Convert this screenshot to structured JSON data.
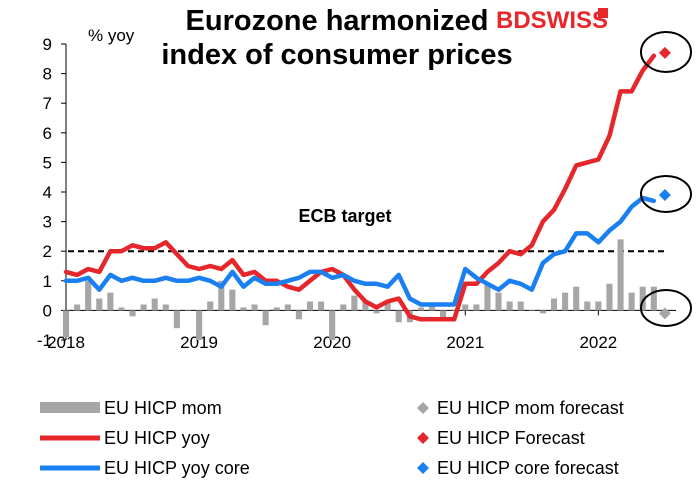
{
  "chart_data": {
    "type": "line",
    "title_lines": [
      "Eurozone harmonized",
      "index of consumer prices"
    ],
    "ylabel": "% yoy",
    "ylim": [
      -1,
      9
    ],
    "yticks": [
      -1,
      0,
      1,
      2,
      3,
      4,
      5,
      6,
      7,
      8,
      9
    ],
    "xlim": [
      "2018-01",
      "2022-08"
    ],
    "xticks": [
      {
        "label": "2018",
        "date": "2018-01"
      },
      {
        "label": "2019",
        "date": "2019-01"
      },
      {
        "label": "2020",
        "date": "2020-01"
      },
      {
        "label": "2021",
        "date": "2021-01"
      },
      {
        "label": "2022",
        "date": "2022-01"
      }
    ],
    "x": [
      "2018-01",
      "2018-02",
      "2018-03",
      "2018-04",
      "2018-05",
      "2018-06",
      "2018-07",
      "2018-08",
      "2018-09",
      "2018-10",
      "2018-11",
      "2018-12",
      "2019-01",
      "2019-02",
      "2019-03",
      "2019-04",
      "2019-05",
      "2019-06",
      "2019-07",
      "2019-08",
      "2019-09",
      "2019-10",
      "2019-11",
      "2019-12",
      "2020-01",
      "2020-02",
      "2020-03",
      "2020-04",
      "2020-05",
      "2020-06",
      "2020-07",
      "2020-08",
      "2020-09",
      "2020-10",
      "2020-11",
      "2020-12",
      "2021-01",
      "2021-02",
      "2021-03",
      "2021-04",
      "2021-05",
      "2021-06",
      "2021-07",
      "2021-08",
      "2021-09",
      "2021-10",
      "2021-11",
      "2021-12",
      "2022-01",
      "2022-02",
      "2022-03",
      "2022-04",
      "2022-05",
      "2022-06"
    ],
    "series": [
      {
        "name": "EU HICP mom",
        "kind": "bar",
        "color": "#a6a6a6",
        "values": [
          -0.9,
          0.2,
          1.0,
          0.4,
          0.6,
          0.1,
          -0.2,
          0.2,
          0.4,
          0.2,
          -0.6,
          0.0,
          -1.0,
          0.3,
          1.0,
          0.7,
          0.1,
          0.2,
          -0.5,
          0.1,
          0.2,
          -0.3,
          0.3,
          0.3,
          -1.0,
          0.2,
          0.5,
          0.3,
          -0.1,
          0.3,
          -0.4,
          -0.4,
          0.1,
          0.2,
          -0.3,
          0.0,
          0.2,
          0.2,
          0.9,
          0.6,
          0.3,
          0.3,
          0.0,
          -0.1,
          0.4,
          0.6,
          0.8,
          0.3,
          0.3,
          0.9,
          2.4,
          0.6,
          0.8,
          0.8
        ]
      },
      {
        "name": "EU HICP yoy",
        "kind": "line",
        "color": "#e5262b",
        "values": [
          1.3,
          1.2,
          1.4,
          1.3,
          2.0,
          2.0,
          2.2,
          2.1,
          2.1,
          2.3,
          1.9,
          1.5,
          1.4,
          1.5,
          1.4,
          1.7,
          1.2,
          1.3,
          1.0,
          1.0,
          0.8,
          0.7,
          1.0,
          1.3,
          1.4,
          1.2,
          0.7,
          0.3,
          0.1,
          0.3,
          0.4,
          -0.2,
          -0.3,
          -0.3,
          -0.3,
          -0.3,
          0.9,
          0.9,
          1.3,
          1.6,
          2.0,
          1.9,
          2.2,
          3.0,
          3.4,
          4.1,
          4.9,
          5.0,
          5.1,
          5.9,
          7.4,
          7.4,
          8.1,
          8.6
        ]
      },
      {
        "name": "EU HICP yoy core",
        "kind": "line",
        "color": "#1a7ff0",
        "values": [
          1.0,
          1.0,
          1.1,
          0.7,
          1.2,
          1.0,
          1.1,
          1.0,
          1.0,
          1.1,
          1.0,
          1.0,
          1.1,
          1.0,
          0.8,
          1.3,
          0.8,
          1.1,
          0.9,
          0.9,
          1.0,
          1.1,
          1.3,
          1.3,
          1.1,
          1.2,
          1.0,
          0.9,
          0.9,
          0.8,
          1.2,
          0.4,
          0.2,
          0.2,
          0.2,
          0.2,
          1.4,
          1.1,
          0.9,
          0.7,
          1.0,
          0.9,
          0.7,
          1.6,
          1.9,
          2.0,
          2.6,
          2.6,
          2.3,
          2.7,
          3.0,
          3.5,
          3.8,
          3.7
        ]
      },
      {
        "name": "EU HICP mom forecast",
        "kind": "marker",
        "color": "#a6a6a6",
        "x": [
          "2022-07"
        ],
        "values": [
          -0.1
        ]
      },
      {
        "name": "EU HICP Forecast",
        "kind": "marker",
        "color": "#e5262b",
        "x": [
          "2022-07"
        ],
        "values": [
          8.7
        ]
      },
      {
        "name": "EU HICP core forecast",
        "kind": "marker",
        "color": "#1a7ff0",
        "x": [
          "2022-07"
        ],
        "values": [
          3.9
        ]
      }
    ],
    "reference_line": {
      "value": 2,
      "label": "ECB target",
      "style": "dashed"
    },
    "grid": false,
    "legend": "bottom"
  },
  "brand": {
    "logo_text_red": "BD",
    "logo_text_dark": "SWISS",
    "red": "#e5262b"
  }
}
